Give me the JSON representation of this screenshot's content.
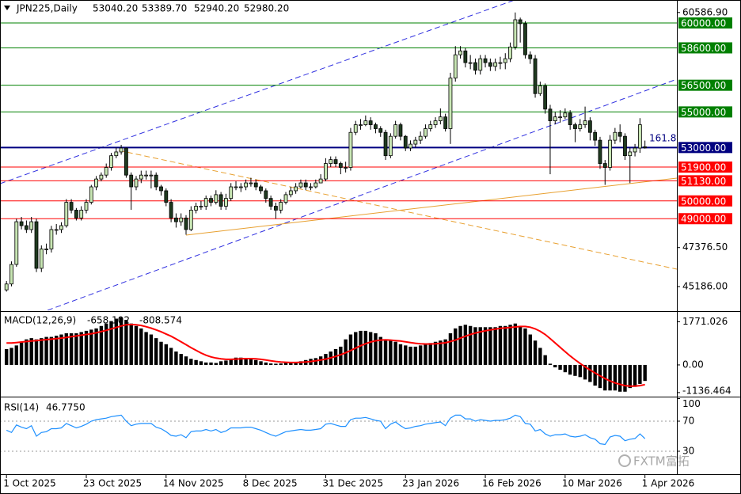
{
  "chart_data": [
    {
      "type": "candlestick",
      "title": "JPN225,Daily",
      "header_values": [
        "53040.20",
        "53389.70",
        "52940.20",
        "52980.20"
      ],
      "open": [
        45000,
        45330,
        46430,
        48830,
        48610,
        48390,
        48830,
        46210,
        47300,
        47300,
        48390,
        48390,
        48610,
        49920,
        49480,
        49040,
        49480,
        49920,
        50790,
        51230,
        51450,
        51880,
        52540,
        52750,
        52970,
        51450,
        50790,
        51230,
        51450,
        51450,
        51450,
        50790,
        50570,
        49920,
        49040,
        48830,
        49040,
        48390,
        49480,
        49700,
        49700,
        50140,
        49920,
        50350,
        49700,
        50140,
        50790,
        50790,
        50790,
        51010,
        51010,
        50790,
        50570,
        50140,
        49700,
        49480,
        49920,
        50350,
        50570,
        50790,
        51010,
        50790,
        50790,
        51010,
        51230,
        52100,
        52320,
        52100,
        51880,
        51880,
        53850,
        54280,
        54280,
        54500,
        54280,
        54060,
        53850,
        52540,
        53630,
        54280,
        53630,
        52970,
        53190,
        53410,
        53630,
        54060,
        54280,
        54500,
        54720,
        54060,
        56900,
        58210,
        58430,
        57770,
        57770,
        57340,
        57990,
        57770,
        57560,
        57770,
        57770,
        57990,
        58650,
        60180,
        59960,
        58210,
        57990,
        56030,
        56460,
        55160,
        54500,
        54720,
        54720,
        54940,
        54280,
        54060,
        54280,
        54500,
        53850,
        53410,
        52100,
        51880,
        53410,
        53850,
        53630,
        52540,
        52750,
        52970,
        53040.2
      ],
      "high": [
        45500,
        46600,
        49000,
        49100,
        48900,
        49100,
        49000,
        47500,
        47600,
        48600,
        48700,
        48800,
        50100,
        50100,
        49600,
        49700,
        50100,
        50900,
        51400,
        51600,
        52100,
        52700,
        53000,
        53150,
        53000,
        51600,
        51400,
        51700,
        51700,
        51700,
        51600,
        50900,
        50700,
        50100,
        49300,
        49300,
        49200,
        49700,
        49900,
        50000,
        50300,
        50300,
        50600,
        50500,
        50400,
        51000,
        51100,
        51000,
        51200,
        51300,
        51200,
        50900,
        50700,
        50300,
        49900,
        50100,
        50500,
        50800,
        51000,
        51200,
        51200,
        51000,
        51200,
        51500,
        52400,
        52500,
        52500,
        52200,
        52200,
        54100,
        54500,
        54600,
        54800,
        54700,
        54400,
        54200,
        54000,
        53800,
        54500,
        54400,
        53700,
        53400,
        53600,
        53900,
        54300,
        54500,
        54700,
        55200,
        54900,
        57200,
        58700,
        58700,
        58600,
        58200,
        58000,
        58200,
        58200,
        58000,
        58000,
        58100,
        58300,
        58900,
        60590,
        60300,
        60100,
        58400,
        58200,
        56700,
        56600,
        55400,
        55000,
        55100,
        55200,
        55100,
        54400,
        54600,
        55300,
        54700,
        54000,
        53600,
        52300,
        53700,
        54100,
        54300,
        53800,
        53000,
        53200,
        54650,
        53389.7
      ],
      "low": [
        44900,
        45200,
        46300,
        48400,
        48200,
        48200,
        46000,
        46000,
        47000,
        47100,
        48100,
        48200,
        48500,
        49300,
        48900,
        48900,
        49300,
        49800,
        50600,
        51100,
        51300,
        51700,
        52400,
        52600,
        51300,
        49500,
        50600,
        51000,
        51200,
        50700,
        50600,
        50300,
        49700,
        48800,
        48500,
        48600,
        48100,
        48300,
        49300,
        49500,
        49500,
        49700,
        49800,
        49500,
        49500,
        50000,
        50600,
        50500,
        50600,
        50800,
        50600,
        50400,
        49900,
        49500,
        49000,
        49300,
        49800,
        50200,
        50400,
        50700,
        50600,
        50600,
        50700,
        51000,
        51100,
        51900,
        51900,
        51500,
        51600,
        51700,
        53700,
        54000,
        54200,
        54000,
        53800,
        53600,
        52300,
        52400,
        53500,
        53400,
        52800,
        52800,
        53000,
        53200,
        53500,
        53900,
        54100,
        54300,
        53900,
        53200,
        56700,
        58000,
        57500,
        57400,
        57100,
        57100,
        57500,
        57300,
        57300,
        57400,
        57400,
        57800,
        58500,
        58900,
        58000,
        57700,
        55800,
        55900,
        54900,
        51500,
        54300,
        54400,
        54600,
        54000,
        53300,
        53900,
        54100,
        53400,
        53100,
        51800,
        50900,
        51700,
        53200,
        53300,
        52300,
        51000,
        52500,
        52700,
        52940.2
      ],
      "close": [
        45330,
        46430,
        48830,
        48610,
        48390,
        48830,
        46210,
        47300,
        47300,
        48390,
        48390,
        48610,
        49920,
        49480,
        49040,
        49480,
        49920,
        50790,
        51230,
        51450,
        51880,
        52540,
        52750,
        52970,
        51450,
        50790,
        51230,
        51450,
        51450,
        51450,
        50790,
        50570,
        49920,
        49040,
        48830,
        49040,
        48390,
        49480,
        49700,
        49700,
        50140,
        49920,
        50350,
        49700,
        50140,
        50790,
        50790,
        50790,
        51010,
        51010,
        50790,
        50570,
        50140,
        49700,
        49480,
        49920,
        50350,
        50570,
        50790,
        51010,
        50790,
        50790,
        51010,
        51230,
        52100,
        52320,
        52100,
        51880,
        51880,
        53850,
        54280,
        54280,
        54500,
        54280,
        54060,
        53850,
        52540,
        53630,
        54280,
        53630,
        52970,
        53190,
        53410,
        53630,
        54060,
        54280,
        54500,
        54720,
        54060,
        56900,
        58210,
        58430,
        57770,
        57770,
        57340,
        57990,
        57770,
        57560,
        57770,
        57770,
        57990,
        58650,
        60180,
        59960,
        58210,
        57990,
        56030,
        56460,
        55160,
        54500,
        54720,
        54720,
        54940,
        54280,
        54060,
        54280,
        54500,
        53850,
        53410,
        52100,
        51880,
        53410,
        53850,
        53630,
        52540,
        52750,
        52970,
        54280,
        52980.2
      ],
      "up_color": "#c8e6b4",
      "down_color": "#1f3a1f",
      "xlim": [
        -1.3,
        134.4
      ],
      "xticks": [
        {
          "value": 0,
          "label": "1 Oct 2025"
        },
        {
          "value": 16,
          "label": "23 Oct 2025"
        },
        {
          "value": 32,
          "label": "14 Nov 2025"
        },
        {
          "value": 48,
          "label": "8 Dec 2025"
        },
        {
          "value": 64,
          "label": "31 Dec 2025"
        },
        {
          "value": 80,
          "label": "23 Jan 2026"
        },
        {
          "value": 96,
          "label": "16 Feb 2026"
        },
        {
          "value": 112,
          "label": "10 Mar 2026"
        },
        {
          "value": 128,
          "label": "1 Apr 2026"
        }
      ],
      "ylim": [
        43850,
        61290
      ],
      "yticks": [
        {
          "value": 60586.9,
          "label": "60586.90"
        },
        {
          "value": 47376.5,
          "label": "47376.50"
        },
        {
          "value": 45186,
          "label": "45186.00"
        }
      ],
      "levels": [
        {
          "value": 60000,
          "label": "60000.00",
          "color": "#008000"
        },
        {
          "value": 58600,
          "label": "58600.00",
          "color": "#008000"
        },
        {
          "value": 56500,
          "label": "56500.00",
          "color": "#008000"
        },
        {
          "value": 55000,
          "label": "55000.00",
          "color": "#008000"
        },
        {
          "value": 53000,
          "label": "53000.00",
          "color": "#000080"
        },
        {
          "value": 51900,
          "label": "51900.00",
          "color": "#ff0000"
        },
        {
          "value": 51130,
          "label": "51130.00",
          "color": "#ff0000"
        },
        {
          "value": 50000,
          "label": "50000.00",
          "color": "#ff0000"
        },
        {
          "value": 49000,
          "label": "49000.00",
          "color": "#ff0000"
        }
      ],
      "annotation": "161.8",
      "watermark": "FXTM富拓"
    },
    {
      "type": "macd",
      "title": "MACD(12,26,9)",
      "histogram": [
        650,
        700,
        800,
        950,
        1050,
        1100,
        1050,
        1100,
        1150,
        1150,
        1200,
        1250,
        1300,
        1300,
        1300,
        1350,
        1400,
        1450,
        1500,
        1600,
        1700,
        1800,
        1900,
        1950,
        1850,
        1700,
        1600,
        1500,
        1350,
        1250,
        1100,
        950,
        850,
        700,
        550,
        450,
        350,
        250,
        200,
        150,
        100,
        100,
        80,
        150,
        180,
        250,
        300,
        300,
        280,
        250,
        200,
        150,
        100,
        60,
        50,
        60,
        80,
        100,
        120,
        150,
        200,
        250,
        280,
        350,
        450,
        550,
        650,
        750,
        1050,
        1250,
        1350,
        1400,
        1400,
        1350,
        1300,
        1150,
        1050,
        1000,
        950,
        850,
        800,
        750,
        750,
        800,
        850,
        900,
        950,
        1000,
        1050,
        1300,
        1500,
        1600,
        1650,
        1600,
        1550,
        1550,
        1550,
        1550,
        1550,
        1600,
        1600,
        1650,
        1700,
        1600,
        1500,
        1250,
        1000,
        700,
        400,
        50,
        -100,
        -200,
        -300,
        -400,
        -450,
        -500,
        -600,
        -700,
        -850,
        -950,
        -1050,
        -1050,
        -1050,
        -1100,
        -1100,
        -950,
        -900,
        -780,
        -658.102
      ],
      "signal": [
        900,
        900,
        920,
        940,
        960,
        980,
        1000,
        1020,
        1040,
        1060,
        1080,
        1100,
        1130,
        1160,
        1190,
        1220,
        1250,
        1280,
        1320,
        1370,
        1420,
        1480,
        1540,
        1600,
        1650,
        1660,
        1650,
        1620,
        1570,
        1510,
        1440,
        1360,
        1270,
        1180,
        1070,
        950,
        830,
        710,
        600,
        490,
        400,
        330,
        280,
        250,
        230,
        230,
        240,
        250,
        260,
        260,
        250,
        230,
        200,
        170,
        140,
        120,
        110,
        100,
        100,
        110,
        120,
        140,
        170,
        200,
        240,
        290,
        350,
        420,
        500,
        590,
        690,
        790,
        870,
        940,
        990,
        1020,
        1030,
        1020,
        1000,
        980,
        950,
        920,
        890,
        870,
        860,
        860,
        870,
        890,
        910,
        960,
        1020,
        1100,
        1180,
        1250,
        1310,
        1360,
        1400,
        1440,
        1470,
        1500,
        1520,
        1540,
        1560,
        1580,
        1580,
        1550,
        1480,
        1380,
        1250,
        1080,
        900,
        720,
        540,
        370,
        210,
        60,
        -80,
        -210,
        -330,
        -450,
        -560,
        -660,
        -740,
        -800,
        -850,
        -870,
        -870,
        -850,
        -808.574
      ],
      "histogram_color": "#000000",
      "signal_color": "#ff0000",
      "ylim": [
        -1270,
        2145
      ],
      "yticks": [
        1771.026,
        {
          "value": 0,
          "label": "0.00"
        },
        -1136.464
      ]
    },
    {
      "type": "line",
      "title": "RSI(14)",
      "header_values": [
        "46.7750"
      ],
      "values": [
        58,
        55,
        65,
        62,
        60,
        64,
        50,
        55,
        56,
        60,
        60,
        61,
        67,
        64,
        61,
        63,
        66,
        70,
        72,
        73,
        74,
        76,
        77,
        78,
        70,
        64,
        66,
        67,
        67,
        67,
        62,
        60,
        56,
        51,
        50,
        52,
        48,
        56,
        57,
        57,
        59,
        57,
        59,
        55,
        57,
        61,
        61,
        61,
        62,
        62,
        60,
        58,
        55,
        52,
        50,
        53,
        56,
        57,
        58,
        59,
        58,
        58,
        59,
        60,
        66,
        67,
        65,
        63,
        63,
        72,
        74,
        74,
        75,
        73,
        71,
        70,
        60,
        66,
        69,
        64,
        60,
        61,
        63,
        64,
        66,
        67,
        68,
        69,
        64,
        74,
        78,
        78,
        73,
        73,
        70,
        72,
        71,
        70,
        71,
        71,
        72,
        74,
        78,
        76,
        67,
        66,
        57,
        59,
        53,
        50,
        52,
        52,
        53,
        50,
        49,
        50,
        52,
        48,
        46,
        40,
        39,
        49,
        51,
        50,
        44,
        46,
        47,
        53,
        46.775
      ],
      "color": "#1e90ff",
      "ylim": [
        0,
        100
      ],
      "yticks": [
        100,
        70,
        30
      ],
      "levels": [
        70,
        30
      ]
    }
  ]
}
